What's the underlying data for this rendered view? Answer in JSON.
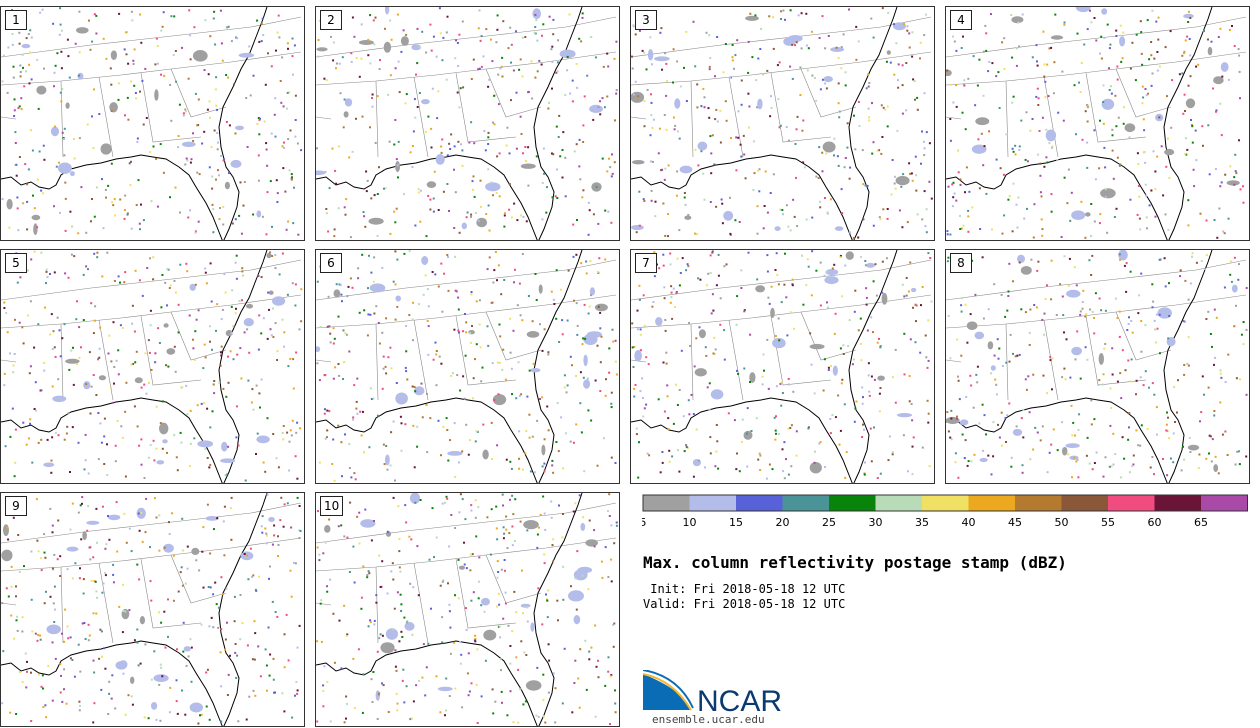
{
  "panels": [
    {
      "label": "1"
    },
    {
      "label": "2"
    },
    {
      "label": "3"
    },
    {
      "label": "4"
    },
    {
      "label": "5"
    },
    {
      "label": "6"
    },
    {
      "label": "7"
    },
    {
      "label": "8"
    },
    {
      "label": "9"
    },
    {
      "label": "10"
    }
  ],
  "colorbar": {
    "ticks": [
      "5",
      "10",
      "15",
      "20",
      "25",
      "30",
      "35",
      "40",
      "45",
      "50",
      "55",
      "60",
      "65"
    ],
    "colors": [
      "#a0a0a0",
      "#b4bcea",
      "#5862d8",
      "#4a9498",
      "#08840a",
      "#b8dcb8",
      "#f0e064",
      "#eca81e",
      "#b47a30",
      "#8a5838",
      "#f04c80",
      "#6a1438",
      "#aa4aa8"
    ]
  },
  "title": "Max. column reflectivity postage stamp (dBZ)",
  "init": " Init: Fri 2018-05-18 12 UTC",
  "valid": "Valid: Fri 2018-05-18 12 UTC",
  "logo": {
    "text": "NCAR",
    "url": "ensemble.ucar.edu"
  }
}
